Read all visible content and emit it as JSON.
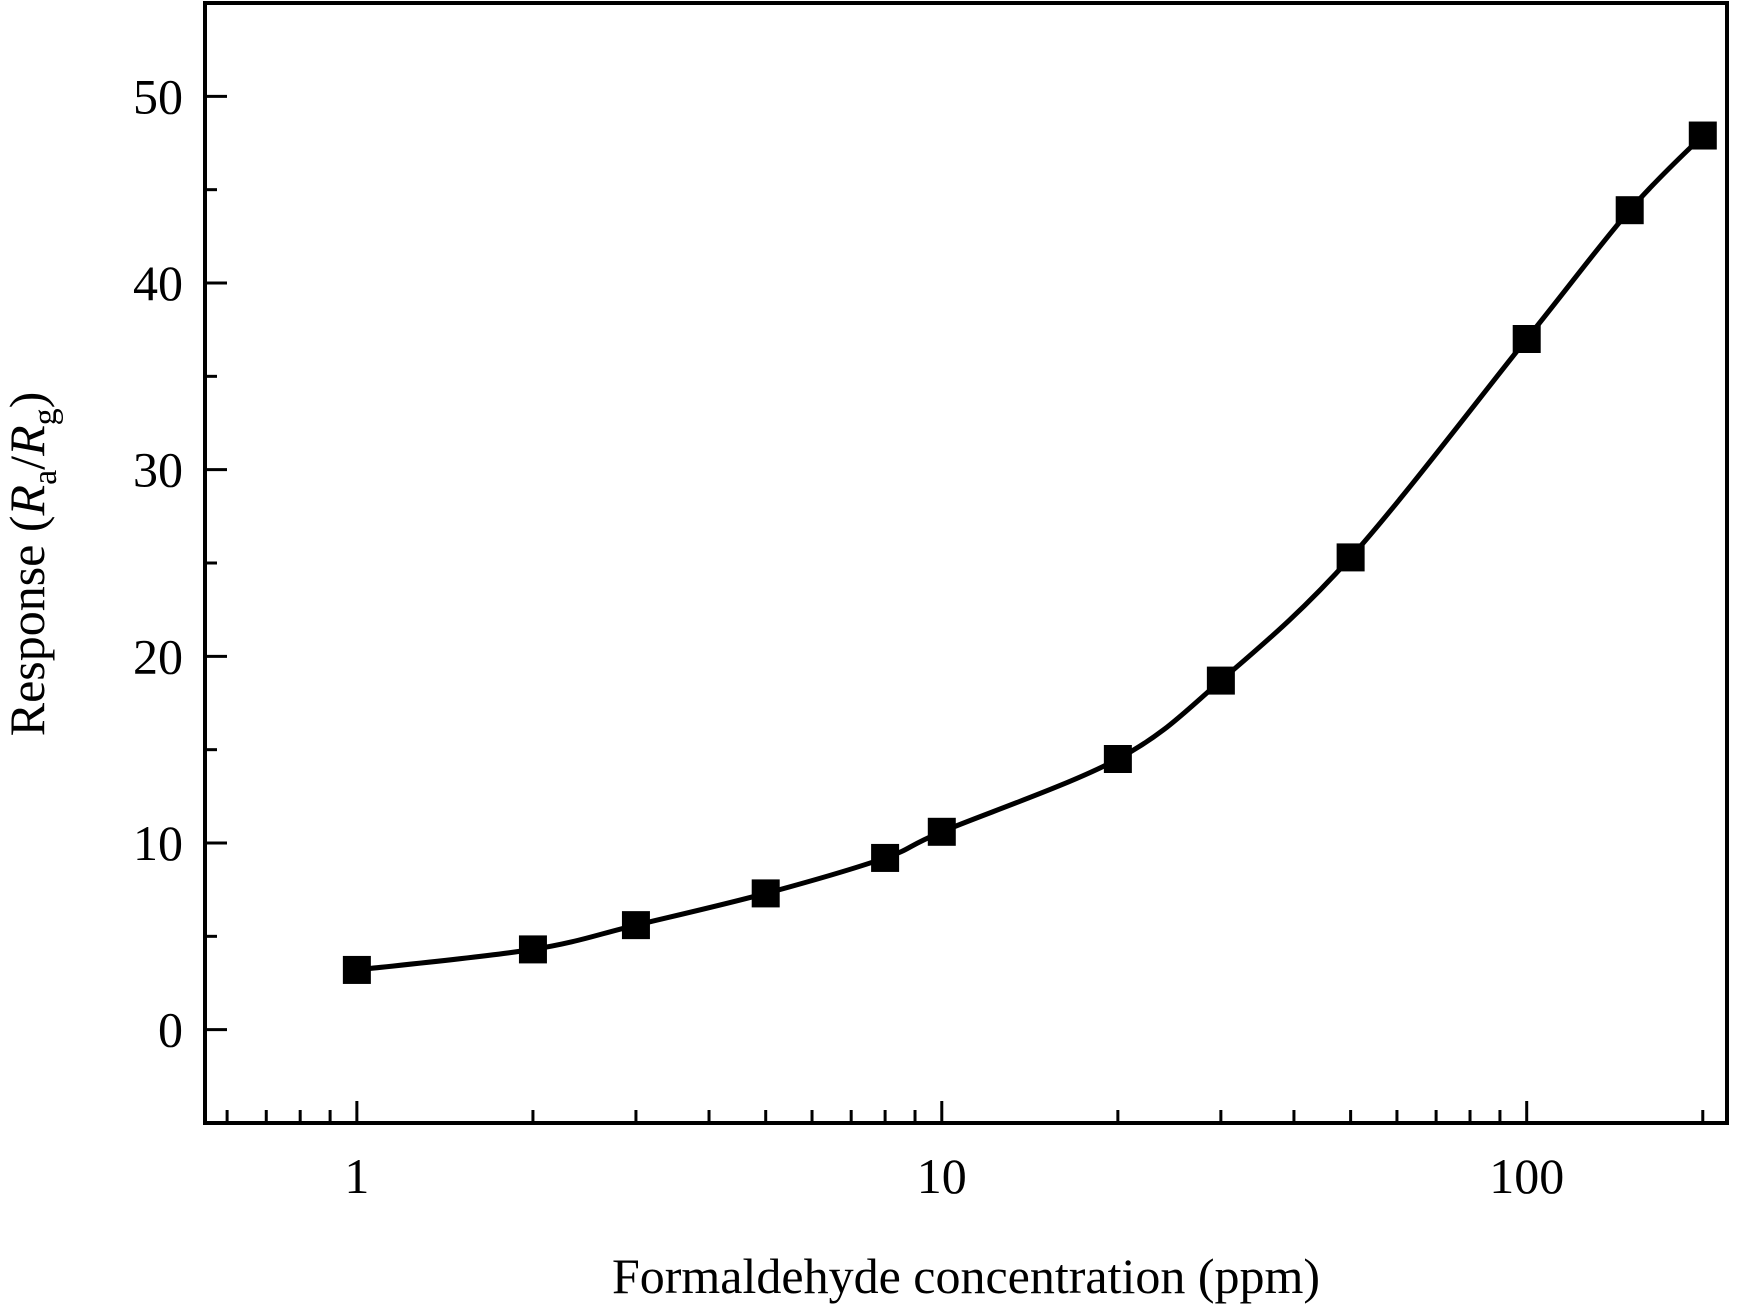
{
  "chart_data": {
    "type": "line",
    "title": "",
    "xlabel": "Formaldehyde concentration (ppm)",
    "ylabel": {
      "prefix": "Response (",
      "r1": "R",
      "sub1": "a",
      "slash": "/",
      "r2": "R",
      "sub2": "g",
      "suffix": ")"
    },
    "x_scale": "log",
    "xlim": [
      0.55,
      220
    ],
    "ylim": [
      -5,
      55
    ],
    "x_ticks": [
      1,
      10,
      100
    ],
    "x_tick_labels": [
      "1",
      "10",
      "100"
    ],
    "y_ticks": [
      0,
      10,
      20,
      30,
      40,
      50
    ],
    "y_tick_labels": [
      "0",
      "10",
      "20",
      "30",
      "40",
      "50"
    ],
    "grid": false,
    "legend": "none",
    "series": [
      {
        "marker": "square",
        "line": "smooth",
        "color": "#000000",
        "x": [
          1,
          2,
          3,
          5,
          8,
          10,
          20,
          30,
          50,
          100,
          150,
          200
        ],
        "y": [
          3.2,
          4.3,
          5.6,
          7.3,
          9.2,
          10.6,
          14.5,
          18.7,
          25.3,
          37.0,
          43.9,
          47.9
        ]
      }
    ]
  }
}
